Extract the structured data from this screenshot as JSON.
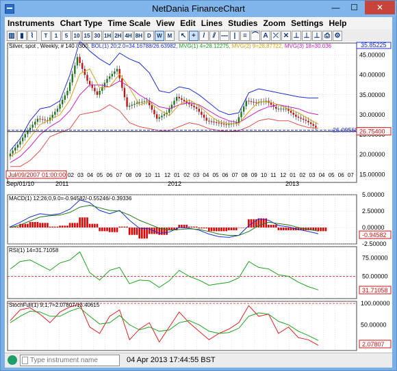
{
  "window": {
    "title": "NetDania FinanceChart",
    "min_glyph": "—",
    "max_glyph": "☐",
    "close_glyph": "✕"
  },
  "menu": [
    "Instruments",
    "Chart Type",
    "Time Scale",
    "View",
    "Edit",
    "Lines",
    "Studies",
    "Zoom",
    "Settings",
    "Help"
  ],
  "toolbar": {
    "chart_types": [
      {
        "name": "bar-chart-icon",
        "glyph": "▥"
      },
      {
        "name": "candle-chart-icon",
        "glyph": "▮"
      },
      {
        "name": "line-chart-icon",
        "glyph": "⌇"
      }
    ],
    "timescales": [
      "T",
      "1",
      "5",
      "10",
      "15",
      "30",
      "1H",
      "2H",
      "4H",
      "8H",
      "D",
      "W",
      "M"
    ],
    "active_timescale": "W",
    "tools": [
      {
        "name": "cursor-icon",
        "glyph": "↖"
      },
      {
        "name": "crosshair-icon",
        "glyph": "+"
      },
      {
        "name": "trend-line-icon",
        "glyph": "/"
      },
      {
        "name": "parallel-lines-icon",
        "glyph": "⫽"
      },
      {
        "name": "horizontal-line-icon",
        "glyph": "—"
      },
      {
        "name": "vertical-line-icon",
        "glyph": "|"
      },
      {
        "name": "fibonacci-icon",
        "glyph": "≡"
      },
      {
        "name": "arc-icon",
        "glyph": "⌒"
      },
      {
        "name": "text-icon",
        "glyph": "A"
      },
      {
        "name": "erase-line-icon",
        "glyph": "⤫"
      },
      {
        "name": "delete-icon",
        "glyph": "✕"
      },
      {
        "name": "pin-icon",
        "glyph": "⊥"
      },
      {
        "name": "pin2-icon",
        "glyph": "⊥"
      },
      {
        "name": "pin3-icon",
        "glyph": "⊥"
      },
      {
        "name": "print-icon",
        "glyph": "⎙"
      },
      {
        "name": "settings-icon",
        "glyph": "⚙"
      }
    ]
  },
  "price_pane": {
    "label_instrument": "Silver, spot , Weekly, # 140 / 300,",
    "label_bol": "BOL(1) 20;2.0=34.16788/26.63982,",
    "label_mvg1": "MVG(1) 4=28.12275,",
    "label_mvg2": "MVG(2) 9=28.87722,",
    "label_mvg3": "MVG(3) 18=30.036",
    "top_value": "35.85225",
    "y_ticks": [
      "45.00000",
      "40.00000",
      "35.00000",
      "30.00000",
      "25.00000",
      "20.00000",
      "15.00000"
    ],
    "hline_label": "-26.09568",
    "last_price": "26.75400",
    "cursor_date": "Jul/09/2007 01:00:00",
    "date_start": "Sep/01/10",
    "x_ticks": [
      "02",
      "03",
      "04",
      "05",
      "06",
      "07",
      "08",
      "09",
      "10",
      "11",
      "12",
      "01",
      "02",
      "03",
      "04",
      "05",
      "06",
      "07",
      "08",
      "09",
      "10",
      "11",
      "12",
      "01",
      "02",
      "03",
      "04",
      "05",
      "06",
      "07"
    ],
    "years": [
      "2011",
      "2012",
      "2013"
    ]
  },
  "macd_pane": {
    "label": "MACD(1) 12;26;0,9.0=-0.94582/-0.55246/-0.39336",
    "y_ticks": [
      "5.00000",
      "2.50000",
      "0.00000",
      "-2.50000"
    ],
    "last_value": "-0.94582"
  },
  "rsi_pane": {
    "label": "RSI(1) 14=31.71058",
    "y_ticks": [
      "75.00000",
      "50.00000"
    ],
    "last_value": "31.71058"
  },
  "stoch_pane": {
    "label": "StochFull(1) 9;1;7=2.07807/13.40615",
    "y_ticks": [
      "100.00000",
      "50.00000"
    ],
    "last_value": "2.07807"
  },
  "status": {
    "instrument_placeholder": "Type instrument name",
    "timestamp": "04 Apr 2013 17:44:55 BST"
  },
  "colors": {
    "bollinger": "#1c2fd0",
    "mvg1": "#d4a017",
    "mvg2": "#e05050",
    "mvg3": "#c020c0",
    "hline": "#1c2fd0",
    "candle_up": "#1a7a1a",
    "candle_down": "#c81010",
    "macd_hist": "#e00000",
    "rsi_line": "#20a020",
    "stoch_k": "#e02020",
    "stoch_d": "#20a020"
  },
  "chart_data": [
    {
      "type": "line",
      "title": "Silver, spot , Weekly",
      "x": [
        "2010-09-01",
        "2010-10-01",
        "2010-11-01",
        "2010-12-01",
        "2011-01-01",
        "2011-02-01",
        "2011-03-01",
        "2011-04-01",
        "2011-05-01",
        "2011-06-01",
        "2011-07-01",
        "2011-08-01",
        "2011-09-01",
        "2011-10-01",
        "2011-11-01",
        "2011-12-01",
        "2012-01-01",
        "2012-02-01",
        "2012-03-01",
        "2012-04-01",
        "2012-05-01",
        "2012-06-01",
        "2012-07-01",
        "2012-08-01",
        "2012-09-01",
        "2012-10-01",
        "2012-11-01",
        "2012-12-01",
        "2013-01-01",
        "2013-02-01",
        "2013-03-01",
        "2013-04-01"
      ],
      "series": [
        {
          "name": "Silver",
          "values": [
            19.5,
            22.5,
            26.0,
            29.0,
            28.5,
            31.5,
            36.0,
            44.5,
            38.5,
            35.0,
            39.0,
            41.5,
            32.0,
            33.0,
            33.5,
            29.0,
            30.5,
            34.5,
            33.0,
            31.5,
            28.5,
            28.0,
            27.5,
            28.0,
            33.5,
            33.0,
            33.5,
            31.5,
            31.5,
            29.5,
            28.5,
            26.8
          ]
        },
        {
          "name": "BOL upper",
          "values": [
            21.0,
            24.0,
            28.5,
            31.5,
            32.0,
            33.5,
            40.0,
            48.5,
            46.0,
            44.0,
            42.5,
            45.5,
            44.0,
            43.0,
            40.5,
            36.0,
            35.5,
            37.0,
            36.5,
            35.0,
            33.0,
            31.0,
            30.0,
            30.5,
            35.5,
            36.5,
            36.0,
            35.5,
            35.0,
            34.5,
            34.2,
            34.2
          ]
        },
        {
          "name": "BOL lower",
          "values": [
            17.0,
            17.0,
            18.5,
            21.0,
            24.5,
            25.5,
            26.5,
            30.0,
            30.5,
            31.0,
            32.5,
            31.0,
            28.0,
            27.0,
            26.5,
            26.0,
            26.0,
            27.0,
            28.0,
            27.5,
            26.5,
            26.0,
            25.8,
            26.0,
            27.0,
            28.5,
            29.0,
            28.5,
            28.5,
            27.5,
            26.8,
            26.6
          ]
        },
        {
          "name": "MVG(3) 18",
          "values": [
            18.0,
            19.5,
            22.0,
            25.0,
            27.0,
            28.5,
            31.0,
            35.0,
            37.5,
            37.5,
            37.0,
            38.5,
            37.0,
            35.0,
            33.5,
            32.0,
            31.5,
            32.5,
            33.0,
            32.5,
            31.0,
            29.5,
            28.5,
            28.0,
            29.5,
            31.0,
            32.0,
            32.5,
            32.0,
            31.5,
            30.5,
            30.0
          ]
        }
      ],
      "ylim": [
        13.0,
        48.0
      ],
      "hline": 26.09568
    },
    {
      "type": "line",
      "title": "MACD(1) 12;26;0,9.0",
      "series": [
        {
          "name": "MACD",
          "values": [
            0.1,
            0.8,
            1.6,
            2.1,
            1.9,
            2.1,
            2.8,
            4.2,
            3.8,
            2.6,
            2.1,
            2.6,
            1.1,
            -0.1,
            -0.2,
            -0.9,
            -0.7,
            0.0,
            -0.1,
            -0.4,
            -1.0,
            -1.4,
            -1.5,
            -1.2,
            0.3,
            1.3,
            1.1,
            0.3,
            0.1,
            -0.3,
            -0.6,
            -0.95
          ]
        },
        {
          "name": "Signal",
          "values": [
            0.0,
            0.4,
            1.0,
            1.6,
            1.8,
            1.9,
            2.3,
            3.1,
            3.4,
            3.0,
            2.6,
            2.5,
            1.9,
            1.1,
            0.5,
            -0.1,
            -0.4,
            -0.3,
            -0.2,
            -0.3,
            -0.6,
            -1.0,
            -1.2,
            -1.2,
            -0.6,
            0.3,
            0.8,
            0.6,
            0.4,
            0.0,
            -0.3,
            -0.55
          ]
        }
      ],
      "ylim": [
        -2.5,
        5.0
      ]
    },
    {
      "type": "line",
      "title": "RSI(1) 14",
      "series": [
        {
          "name": "RSI",
          "values": [
            60,
            70,
            72,
            65,
            58,
            68,
            72,
            83,
            55,
            45,
            58,
            62,
            40,
            45,
            44,
            35,
            44,
            58,
            50,
            45,
            38,
            40,
            42,
            48,
            70,
            62,
            60,
            52,
            50,
            42,
            36,
            31.7
          ]
        }
      ],
      "ylim": [
        20,
        90
      ],
      "hline": 50
    },
    {
      "type": "line",
      "title": "StochFull(1) 9;1;7",
      "series": [
        {
          "name": "%K",
          "values": [
            60,
            85,
            90,
            75,
            55,
            80,
            92,
            98,
            45,
            30,
            70,
            85,
            15,
            40,
            55,
            10,
            45,
            80,
            55,
            35,
            15,
            30,
            40,
            55,
            95,
            70,
            75,
            30,
            45,
            20,
            15,
            2.1
          ]
        },
        {
          "name": "%D",
          "values": [
            55,
            70,
            82,
            80,
            70,
            70,
            82,
            90,
            70,
            52,
            55,
            72,
            50,
            38,
            45,
            35,
            38,
            55,
            60,
            50,
            35,
            30,
            32,
            42,
            70,
            78,
            75,
            58,
            50,
            35,
            25,
            13.4
          ]
        }
      ],
      "ylim": [
        -10,
        105
      ],
      "hline": 100
    }
  ]
}
